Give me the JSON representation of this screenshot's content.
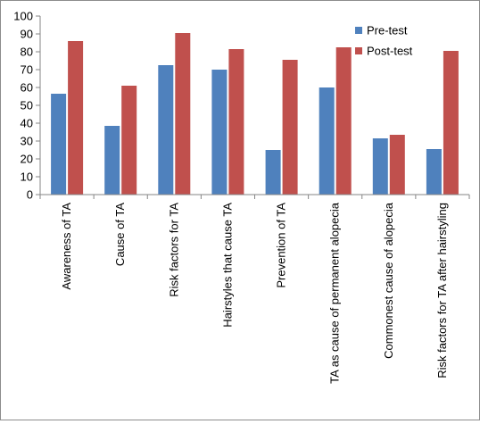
{
  "chart_data": {
    "type": "bar",
    "categories": [
      "Awareness of TA",
      "Cause of TA",
      "Risk factors for TA",
      "Hairstyles that cause TA",
      "Prevention of TA",
      "TA as cause of permanent alopecia",
      "Commonest cause of alopecia",
      "Risk factors for TA after hairstyling"
    ],
    "series": [
      {
        "name": "Pre-test",
        "color": "#4f81bd",
        "values": [
          56.5,
          38.5,
          72.5,
          70,
          25,
          60,
          31.5,
          25.5
        ]
      },
      {
        "name": "Post-test",
        "color": "#c0504d",
        "values": [
          86,
          61,
          90.5,
          81.5,
          75.5,
          82.5,
          33.5,
          80.5
        ]
      }
    ],
    "ylim": [
      0,
      100
    ],
    "yticks": [
      "0",
      "10",
      "20",
      "30",
      "40",
      "50",
      "60",
      "70",
      "80",
      "90",
      "100"
    ],
    "grid": false,
    "legend_position": "top-right",
    "title": "",
    "xlabel": "",
    "ylabel": ""
  }
}
